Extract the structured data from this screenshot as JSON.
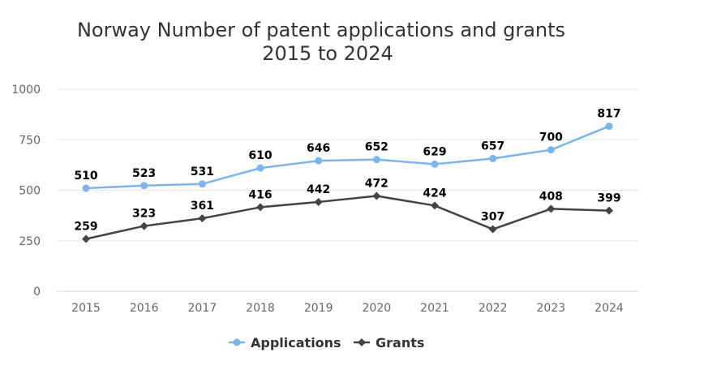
{
  "chart_data": {
    "type": "line",
    "title": "Norway Number of patent applications and grants",
    "subtitle": "2015 to 2024",
    "xlabel": "",
    "ylabel": "",
    "ylim": [
      0,
      1000
    ],
    "yticks": [
      0,
      250,
      500,
      750,
      1000
    ],
    "categories": [
      "2015",
      "2016",
      "2017",
      "2018",
      "2019",
      "2020",
      "2021",
      "2022",
      "2023",
      "2024"
    ],
    "grid": true,
    "legend_position": "bottom-center",
    "series": [
      {
        "name": "Applications",
        "color": "#7cb5ec",
        "marker": "circle",
        "values": [
          510,
          523,
          531,
          610,
          646,
          652,
          629,
          657,
          700,
          817
        ]
      },
      {
        "name": "Grants",
        "color": "#434348",
        "marker": "diamond",
        "values": [
          259,
          323,
          361,
          416,
          442,
          472,
          424,
          307,
          408,
          399
        ]
      }
    ]
  }
}
